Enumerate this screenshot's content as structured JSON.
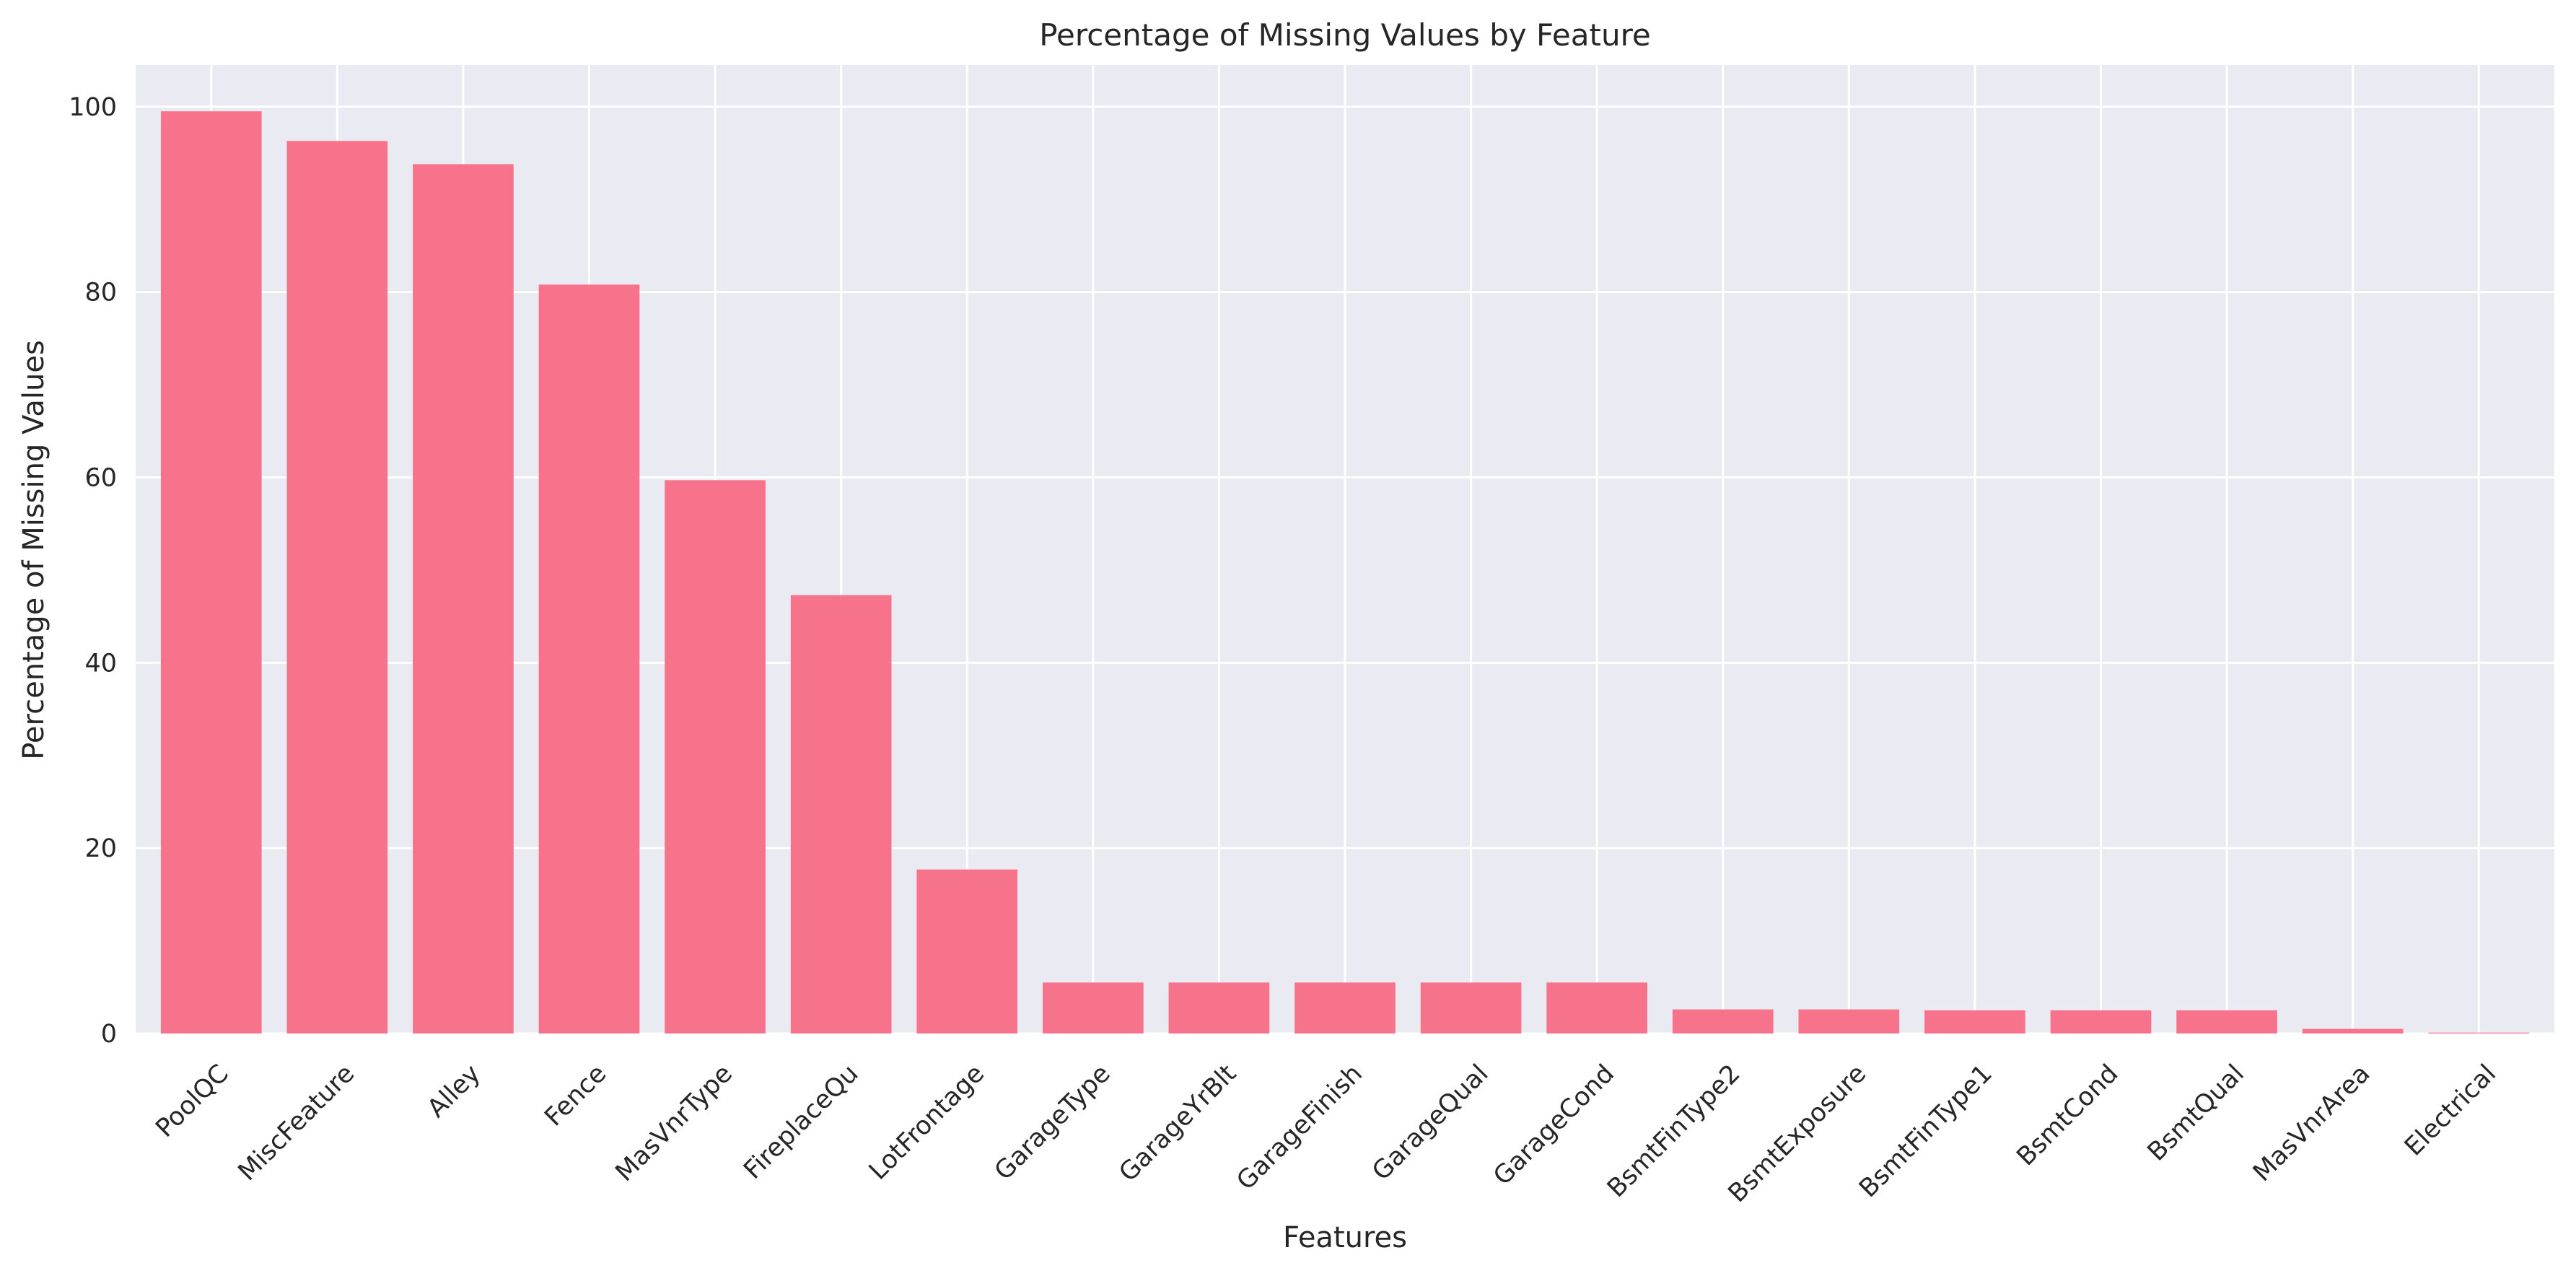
{
  "chart_data": {
    "type": "bar",
    "title": "Percentage of Missing Values by Feature",
    "xlabel": "Features",
    "ylabel": "Percentage of Missing Values",
    "categories": [
      "PoolQC",
      "MiscFeature",
      "Alley",
      "Fence",
      "MasVnrType",
      "FireplaceQu",
      "LotFrontage",
      "GarageType",
      "GarageYrBlt",
      "GarageFinish",
      "GarageQual",
      "GarageCond",
      "BsmtFinType2",
      "BsmtExposure",
      "BsmtFinType1",
      "BsmtCond",
      "BsmtQual",
      "MasVnrArea",
      "Electrical"
    ],
    "values": [
      99.5,
      96.3,
      93.8,
      80.8,
      59.7,
      47.3,
      17.7,
      5.5,
      5.5,
      5.5,
      5.5,
      5.5,
      2.6,
      2.6,
      2.5,
      2.5,
      2.5,
      0.5,
      0.1
    ],
    "ylim": [
      0,
      104.5
    ],
    "yticks": [
      0,
      20,
      40,
      60,
      80,
      100
    ],
    "grid": true,
    "bar_color": "#f7728b",
    "background_color": "#eaeaf2"
  }
}
